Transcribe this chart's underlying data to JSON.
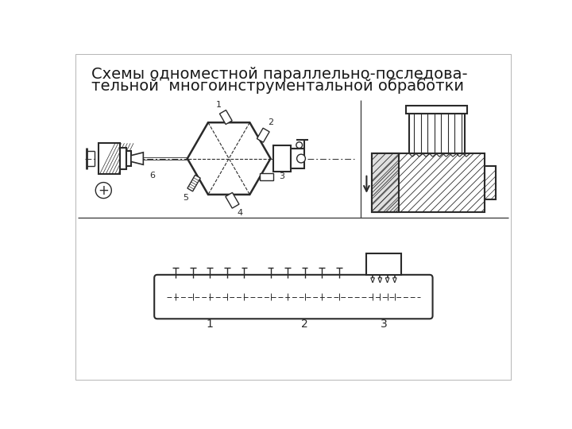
{
  "title_line1": "Схемы одноместной параллельно-последова-",
  "title_line2": "тельной  многоинструментальной обработки",
  "title_fontsize": 14,
  "title_color": "#1a1a1a",
  "bg_color": "#ffffff",
  "drawing_color": "#2a2a2a",
  "fig_width": 7.2,
  "fig_height": 5.4
}
